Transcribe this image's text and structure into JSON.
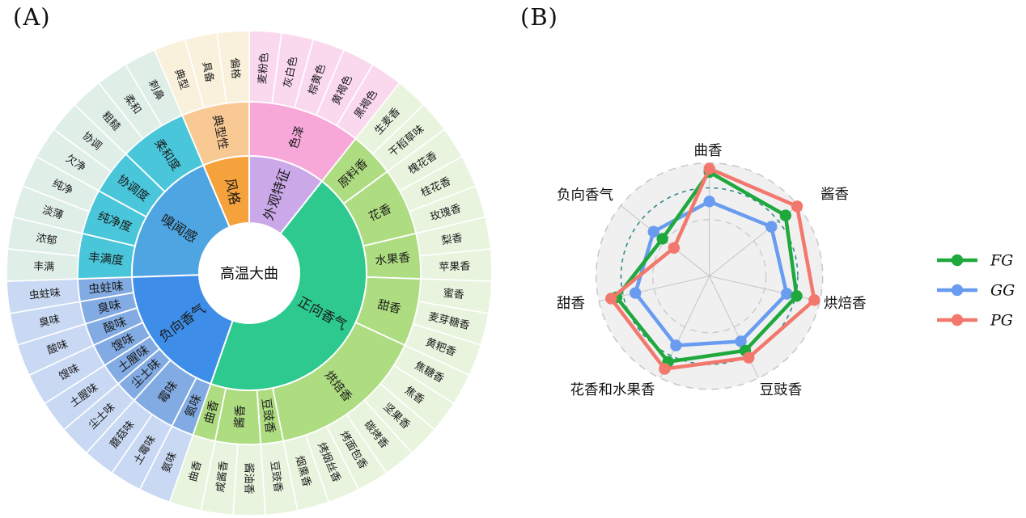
{
  "panel_a_label": "(A)",
  "panel_b_label": "(B)",
  "chart_data": [
    {
      "type": "sunburst",
      "title": "Sensory descriptor wheel of high-temperature Daqu",
      "center_label": "高温大曲",
      "branches": [
        {
          "label": "外观特征",
          "l1_color": "#CBA9E9",
          "l2_color": "#F7A8D8",
          "leaf_color": "#FAD9EE",
          "children": [
            {
              "label": "色泽",
              "leaves": [
                "麦粉色",
                "灰白色",
                "棕黄色",
                "黄褐色",
                "黑褐色"
              ]
            }
          ]
        },
        {
          "label": "正向香气",
          "l1_color": "#2DC98F",
          "l2_color": "#AEDC80",
          "leaf_color": "#E9F4DF",
          "children": [
            {
              "label": "原料香",
              "leaves": [
                "生麦香",
                "干稻草味"
              ]
            },
            {
              "label": "花香",
              "leaves": [
                "槐花香",
                "桂花香",
                "玫瑰香"
              ]
            },
            {
              "label": "水果香",
              "leaves": [
                "梨香",
                "苹果香"
              ]
            },
            {
              "label": "甜香",
              "leaves": [
                "蜜香",
                "麦芽糖香",
                "黄粑香"
              ]
            },
            {
              "label": "烘焙香",
              "leaves": [
                "焦糖香",
                "焦香",
                "坚果香",
                "碳烤香",
                "烤面包香",
                "烤烟丝香",
                "烟熏香"
              ]
            },
            {
              "label": "豆豉香",
              "leaves": [
                "豆豉香"
              ]
            },
            {
              "label": "酱香",
              "leaves": [
                "酱油香",
                "咸酱香"
              ]
            },
            {
              "label": "曲香",
              "leaves": [
                "曲香"
              ]
            }
          ]
        },
        {
          "label": "负向香气",
          "l1_color": "#3E8EE9",
          "l2_color": "#83ABE3",
          "leaf_color": "#C9D9F3",
          "children": [
            {
              "label": "氨味",
              "leaves": [
                "氨味"
              ]
            },
            {
              "label": "霉味",
              "leaves": [
                "土霉味",
                "蘑菇味"
              ]
            },
            {
              "label": "尘土味",
              "leaves": [
                "尘土味"
              ]
            },
            {
              "label": "土腥味",
              "leaves": [
                "土腥味"
              ]
            },
            {
              "label": "馊味",
              "leaves": [
                "馊味"
              ]
            },
            {
              "label": "酸味",
              "leaves": [
                "酸味"
              ]
            },
            {
              "label": "臭味",
              "leaves": [
                "臭味"
              ]
            },
            {
              "label": "虫蛀味",
              "leaves": [
                "虫蛀味"
              ]
            }
          ]
        },
        {
          "label": "嗅闻感",
          "l1_color": "#4FA5E1",
          "l2_color": "#49C6DA",
          "leaf_color": "#E0EEE8",
          "children": [
            {
              "label": "丰满度",
              "leaves": [
                "丰满",
                "浓郁"
              ]
            },
            {
              "label": "纯净度",
              "leaves": [
                "淡薄",
                "纯净"
              ]
            },
            {
              "label": "协调度",
              "leaves": [
                "欠净",
                "协调"
              ]
            },
            {
              "label": "柔和度",
              "leaves": [
                "粗糙",
                "柔和",
                "刺鼻"
              ]
            }
          ]
        },
        {
          "label": "风格",
          "l1_color": "#F5A13C",
          "l2_color": "#F9C994",
          "leaf_color": "#FAF1DD",
          "children": [
            {
              "label": "典型性",
              "leaves": [
                "典型",
                "具备",
                "偏格"
              ]
            }
          ]
        }
      ]
    },
    {
      "type": "radar",
      "title": "Aroma profile comparison of FG, GG, PG Daqu",
      "axes": [
        "曲香",
        "酱香",
        "烘焙香",
        "豆豉香",
        "花香和水果香",
        "甜香",
        "负向香气"
      ],
      "series": [
        {
          "name": "FG",
          "color": "#1FA83C",
          "values": [
            0.92,
            0.86,
            0.79,
            0.73,
            0.84,
            0.84,
            0.53
          ]
        },
        {
          "name": "GG",
          "color": "#699CF0",
          "values": [
            0.66,
            0.7,
            0.7,
            0.64,
            0.68,
            0.67,
            0.63
          ]
        },
        {
          "name": "PG",
          "color": "#F2786D",
          "values": [
            0.95,
            0.99,
            0.95,
            0.8,
            0.91,
            0.89,
            0.4
          ]
        }
      ],
      "scale_max": 1,
      "grid": {
        "circles": [
          0.5,
          1.0
        ],
        "reference_circle": 0.78,
        "reference_color": "#2F8C8C",
        "grid_color": "#C8C8C8",
        "fill_color": "#F0F0F0"
      },
      "legend_position": "right"
    }
  ]
}
